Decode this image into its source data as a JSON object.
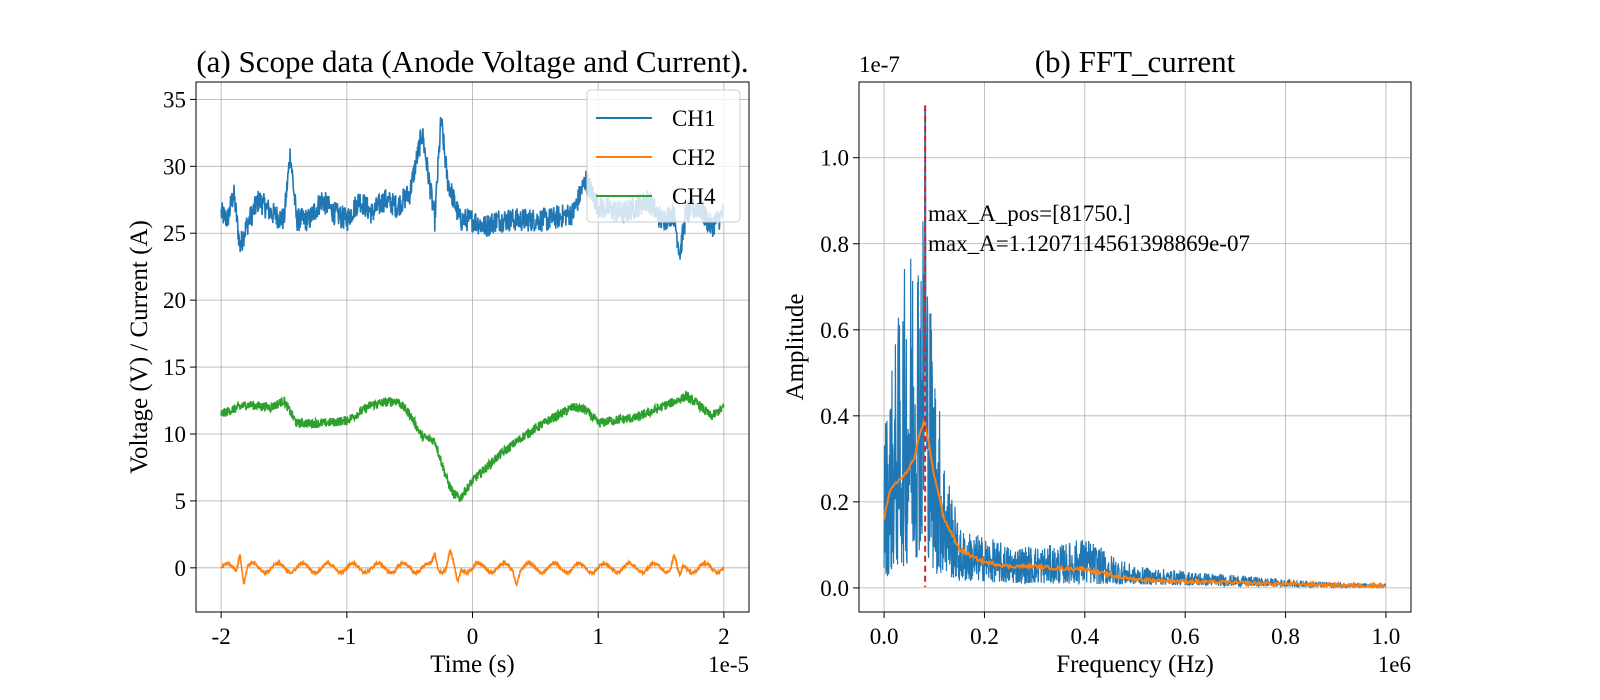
{
  "chart_data": [
    {
      "type": "line",
      "title": "(a) Scope data (Anode Voltage and Current).",
      "xlabel": "Time (s)",
      "ylabel": "Voltage (V) / Current (A)",
      "x_offset_text": "1e-5",
      "xlim": [
        -2.2,
        2.2
      ],
      "ylim": [
        -3.3,
        36.3
      ],
      "xticks": [
        -2,
        -1,
        0,
        1,
        2
      ],
      "xtick_labels": [
        "-2",
        "-1",
        "0",
        "1",
        "2"
      ],
      "yticks": [
        0,
        5,
        10,
        15,
        20,
        25,
        30,
        35
      ],
      "ytick_labels": [
        "0",
        "5",
        "10",
        "15",
        "20",
        "25",
        "30",
        "35"
      ],
      "grid": true,
      "legend": {
        "placement": "top-right",
        "entries": [
          "CH1",
          "CH2",
          "CH4"
        ]
      },
      "series": [
        {
          "name": "CH1",
          "color": "#1f77b4",
          "noise": 0.9,
          "x": [
            -2.0,
            -1.95,
            -1.9,
            -1.85,
            -1.8,
            -1.7,
            -1.6,
            -1.5,
            -1.45,
            -1.4,
            -1.3,
            -1.2,
            -1.1,
            -1.0,
            -0.9,
            -0.8,
            -0.7,
            -0.6,
            -0.5,
            -0.4,
            -0.3,
            -0.25,
            -0.2,
            -0.1,
            0.0,
            0.1,
            0.2,
            0.4,
            0.6,
            0.8,
            0.9,
            1.0,
            1.2,
            1.4,
            1.5,
            1.6,
            1.65,
            1.7,
            1.8,
            1.9,
            2.0
          ],
          "y": [
            26.5,
            26.0,
            28.0,
            24.0,
            25.5,
            27.5,
            26.5,
            26.0,
            31.0,
            26.0,
            26.0,
            27.5,
            26.5,
            26.0,
            27.5,
            26.5,
            27.5,
            27.0,
            28.0,
            32.5,
            26.0,
            33.5,
            29.0,
            26.0,
            26.0,
            25.5,
            26.0,
            26.0,
            26.0,
            26.5,
            29.0,
            27.0,
            26.5,
            27.5,
            26.0,
            26.5,
            23.5,
            26.5,
            27.0,
            25.5,
            26.5
          ]
        },
        {
          "name": "CH2",
          "color": "#ff7f0e",
          "oscillation": {
            "mean": 0.0,
            "amplitude": 0.35,
            "period": 0.2
          },
          "x": [
            -2.0,
            2.0
          ],
          "y": [
            0.0,
            0.0
          ],
          "spikes": [
            {
              "x": -1.85,
              "y": 1.4
            },
            {
              "x": -1.82,
              "y": -1.0
            },
            {
              "x": -0.3,
              "y": 1.1
            },
            {
              "x": -0.18,
              "y": 1.2
            },
            {
              "x": -0.12,
              "y": -1.3
            },
            {
              "x": 0.35,
              "y": -1.0
            },
            {
              "x": 1.6,
              "y": 0.9
            },
            {
              "x": 1.65,
              "y": -0.9
            }
          ]
        },
        {
          "name": "CH4",
          "color": "#2ca02c",
          "noise": 0.35,
          "x": [
            -2.0,
            -1.8,
            -1.6,
            -1.5,
            -1.4,
            -1.2,
            -1.0,
            -0.8,
            -0.6,
            -0.5,
            -0.4,
            -0.3,
            -0.2,
            -0.15,
            -0.1,
            0.0,
            0.2,
            0.4,
            0.6,
            0.8,
            0.9,
            1.0,
            1.1,
            1.3,
            1.5,
            1.7,
            1.8,
            1.9,
            2.0
          ],
          "y": [
            11.5,
            12.2,
            12.0,
            12.5,
            10.8,
            10.8,
            11.0,
            12.2,
            12.5,
            11.5,
            9.8,
            9.5,
            6.5,
            5.5,
            5.2,
            6.5,
            8.3,
            9.8,
            11.0,
            12.0,
            11.8,
            10.8,
            11.0,
            11.2,
            12.0,
            12.8,
            12.2,
            11.3,
            12.0
          ]
        }
      ]
    },
    {
      "type": "line",
      "title": "(b) FFT_current",
      "xlabel": "Frequency (Hz)",
      "ylabel": "Amplitude",
      "x_offset_text": "1e6",
      "y_offset_text": "1e-7",
      "xlim": [
        -0.05,
        1.05
      ],
      "ylim": [
        -0.056,
        1.176
      ],
      "xticks": [
        0.0,
        0.2,
        0.4,
        0.6,
        0.8,
        1.0
      ],
      "xtick_labels": [
        "0.0",
        "0.2",
        "0.4",
        "0.6",
        "0.8",
        "1.0"
      ],
      "yticks": [
        0.0,
        0.2,
        0.4,
        0.6,
        0.8,
        1.0
      ],
      "ytick_labels": [
        "0.0",
        "0.2",
        "0.4",
        "0.6",
        "0.8",
        "1.0"
      ],
      "grid": true,
      "vline": {
        "x": 0.08175,
        "color": "#d62728",
        "style": "dashed"
      },
      "annotations": [
        "max_A_pos=[81750.]",
        "max_A=1.1207114561398869e-07"
      ],
      "series": [
        {
          "kind": "spectrum",
          "color": "#1f77b4",
          "peak": {
            "x": 0.08175,
            "y": 1.1207
          },
          "x": [
            0.0,
            0.02,
            0.04,
            0.06,
            0.08,
            0.1,
            0.12,
            0.15,
            0.2,
            0.25,
            0.3,
            0.35,
            0.4,
            0.45,
            0.5,
            0.6,
            0.7,
            0.8,
            0.9,
            1.0
          ],
          "envelope": [
            0.38,
            0.56,
            0.74,
            0.86,
            0.92,
            0.55,
            0.32,
            0.14,
            0.12,
            0.1,
            0.1,
            0.1,
            0.12,
            0.08,
            0.05,
            0.04,
            0.03,
            0.02,
            0.012,
            0.008
          ],
          "floor": [
            0.02,
            0.04,
            0.05,
            0.06,
            0.1,
            0.03,
            0.03,
            0.015,
            0.015,
            0.01,
            0.01,
            0.01,
            0.01,
            0.008,
            0.008,
            0.006,
            0.004,
            0.003,
            0.002,
            0.002
          ]
        },
        {
          "kind": "smoothed",
          "color": "#ff7f0e",
          "x": [
            0.0,
            0.01,
            0.02,
            0.04,
            0.06,
            0.07,
            0.08,
            0.09,
            0.1,
            0.12,
            0.15,
            0.18,
            0.2,
            0.25,
            0.3,
            0.35,
            0.4,
            0.43,
            0.47,
            0.5,
            0.6,
            0.7,
            0.8,
            0.9,
            1.0
          ],
          "y": [
            0.16,
            0.22,
            0.24,
            0.26,
            0.3,
            0.35,
            0.39,
            0.33,
            0.26,
            0.16,
            0.09,
            0.07,
            0.06,
            0.05,
            0.05,
            0.045,
            0.045,
            0.035,
            0.025,
            0.02,
            0.015,
            0.012,
            0.009,
            0.007,
            0.005
          ]
        }
      ]
    }
  ]
}
